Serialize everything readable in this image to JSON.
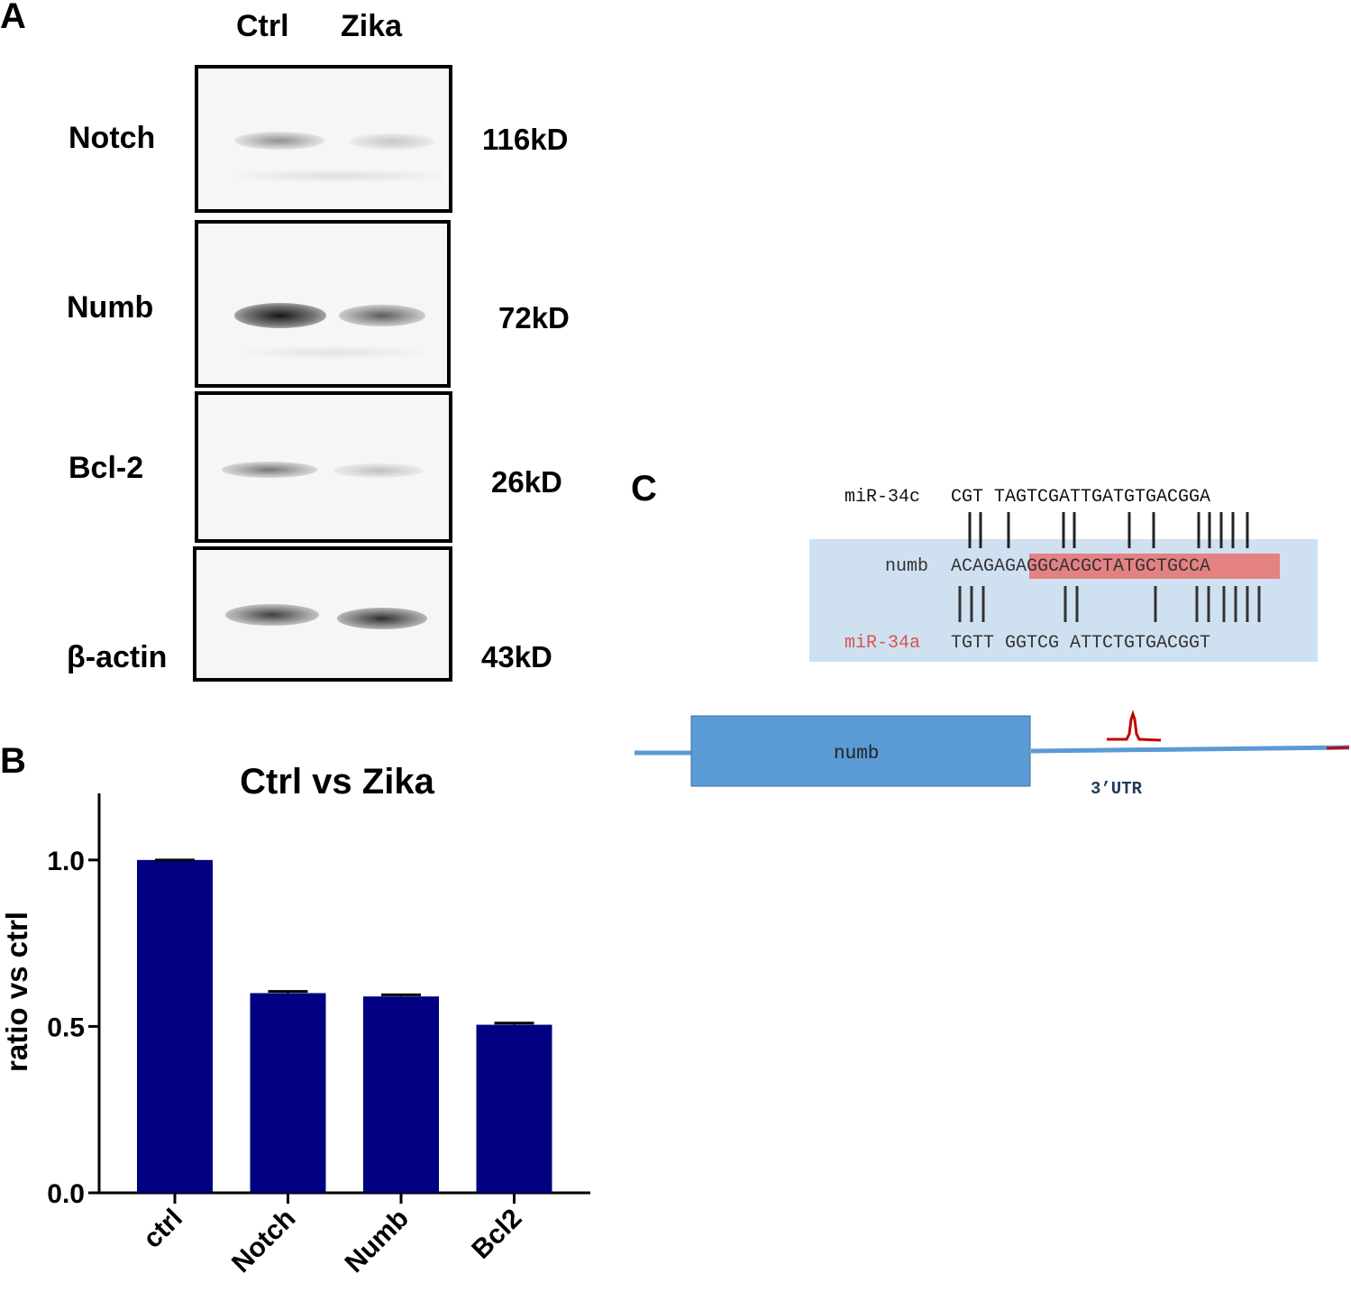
{
  "panel_a": {
    "letter": "A",
    "lanes": [
      "Ctrl",
      "Zika"
    ],
    "blots": [
      {
        "protein": "Notch",
        "kd": "116kD",
        "band_intensity": [
          0.35,
          0.15
        ]
      },
      {
        "protein": "Numb",
        "kd": "72kD",
        "band_intensity": [
          0.95,
          0.55
        ]
      },
      {
        "protein": "Bcl-2",
        "kd": "26kD",
        "band_intensity": [
          0.45,
          0.2
        ]
      },
      {
        "protein": "β-actin",
        "kd": "43kD",
        "band_intensity": [
          0.7,
          0.75
        ]
      }
    ]
  },
  "panel_b": {
    "letter": "B",
    "chart_data": {
      "type": "bar",
      "title": "Ctrl vs Zika",
      "xlabel": "",
      "ylabel": "ratio vs ctrl",
      "categories": [
        "ctrl",
        "Notch",
        "Numb",
        "Bcl2"
      ],
      "values": [
        1.0,
        0.6,
        0.59,
        0.505
      ],
      "errors": [
        0.0,
        0.005,
        0.005,
        0.005
      ],
      "ylim": [
        0,
        1.2
      ],
      "yticks": [
        "0.0",
        "0.5",
        "1.0"
      ],
      "ytick_values": [
        0,
        0.5,
        1.0
      ],
      "bar_color": "#000080",
      "grid": false
    }
  },
  "panel_c": {
    "letter": "C",
    "mir34c_label": "miR-34c",
    "mir34c_seq": "CGT TAGTCGATTGATGTGACGGA",
    "numb_label": "numb",
    "numb_seq_plain": "ACAGAG",
    "numb_seq_highlight": "AGGCACGCTATGCTGCCA",
    "mir34a_label": "miR-34a",
    "mir34a_seq": "TGTT GGTCG ATTCTGTGACGGT",
    "gene_label": "numb",
    "utr_label": "3’UTR",
    "highlight_color": "#e87070",
    "mir34a_color": "#d9534f",
    "box_color": "#cfe0f0",
    "gene_color": "#5b9bd5"
  }
}
